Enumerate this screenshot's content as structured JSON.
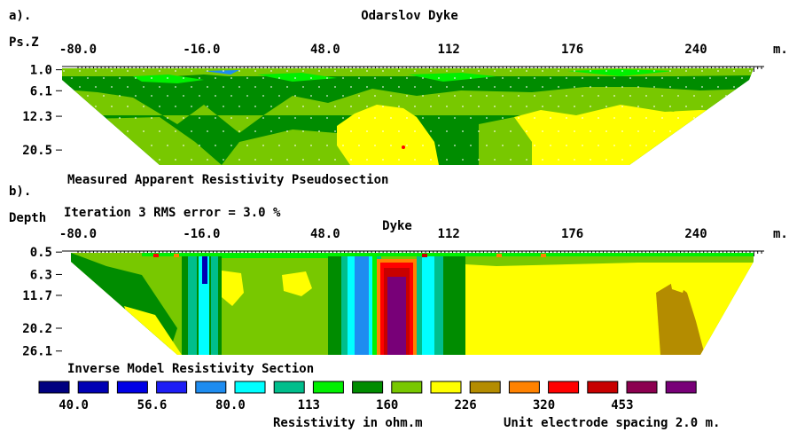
{
  "chart_data": [
    {
      "type": "heatmap",
      "panel_label": "a).",
      "title": "Odarslov Dyke",
      "ylabel": "Ps.Z",
      "x_unit": "m.",
      "x_ticks": [
        "-80.0",
        "-16.0",
        "48.0",
        "112",
        "176",
        "240"
      ],
      "x_tick_values": [
        -80,
        -16,
        48,
        112,
        176,
        240
      ],
      "y_ticks": [
        "1.0",
        "6.1",
        "12.3",
        "20.5"
      ],
      "y_tick_values": [
        1.0,
        6.1,
        12.3,
        20.5
      ],
      "xlim": [
        -80,
        270
      ],
      "ylim": [
        0,
        25
      ],
      "caption": "Measured Apparent Resistivity Pseudosection"
    },
    {
      "type": "heatmap",
      "panel_label": "b).",
      "ylabel": "Depth",
      "subtitle": "Iteration 3 RMS error = 3.0 %",
      "annotation": "Dyke",
      "x_unit": "m.",
      "x_ticks": [
        "-80.0",
        "-16.0",
        "48.0",
        "112",
        "176",
        "240"
      ],
      "x_tick_values": [
        -80,
        -16,
        48,
        112,
        176,
        240
      ],
      "y_ticks": [
        "0.5",
        "6.3",
        "11.7",
        "20.2",
        "26.1"
      ],
      "y_tick_values": [
        0.5,
        6.3,
        11.7,
        20.2,
        26.1
      ],
      "xlim": [
        -80,
        270
      ],
      "ylim": [
        0,
        28
      ],
      "caption": "Inverse Model Resistivity Section"
    }
  ],
  "legend": {
    "colors": [
      "#000080",
      "#0000b4",
      "#0000e6",
      "#1e1ef5",
      "#1e8cf0",
      "#00ffff",
      "#00be8c",
      "#00f000",
      "#008c00",
      "#78c800",
      "#ffff00",
      "#b48c00",
      "#ff8200",
      "#ff0000",
      "#c80000",
      "#8c0050",
      "#780078"
    ],
    "labels": [
      "40.0",
      "56.6",
      "80.0",
      "113",
      "160",
      "226",
      "320",
      "453"
    ],
    "units_label": "Resistivity in ohm.m",
    "spacing_label": "Unit electrode spacing 2.0 m."
  }
}
